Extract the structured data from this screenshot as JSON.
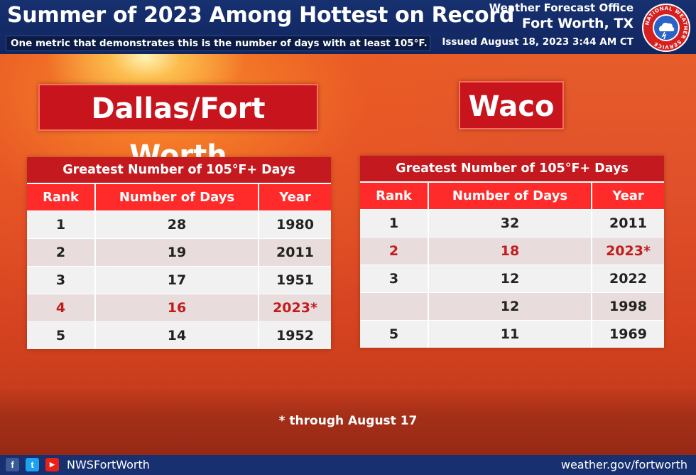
{
  "header": {
    "title": "Summer of 2023 Among Hottest on Record",
    "subtitle": "One metric that demonstrates this is the number of days with at least 105°F.",
    "office_line1": "Weather Forecast Office",
    "office_line2": "Fort Worth, TX",
    "issued": "Issued August 18, 2023 3:44 AM CT",
    "logo_text": "NATIONAL WEATHER SERVICE"
  },
  "dfw": {
    "city": "Dallas/Fort Worth",
    "table_title": "Greatest Number of 105°F+ Days",
    "columns": [
      "Rank",
      "Number of Days",
      "Year"
    ],
    "rows": [
      {
        "rank": "1",
        "days": "28",
        "year": "1980"
      },
      {
        "rank": "2",
        "days": "19",
        "year": "2011"
      },
      {
        "rank": "3",
        "days": "17",
        "year": "1951"
      },
      {
        "rank": "4",
        "days": "16",
        "year": "2023*"
      },
      {
        "rank": "5",
        "days": "14",
        "year": "1952"
      }
    ]
  },
  "waco": {
    "city": "Waco",
    "table_title": "Greatest Number of 105°F+ Days",
    "columns": [
      "Rank",
      "Number of Days",
      "Year"
    ],
    "rows": [
      {
        "rank": "1",
        "days": "32",
        "year": "2011"
      },
      {
        "rank": "2",
        "days": "18",
        "year": "2023*"
      },
      {
        "rank": "3",
        "days": "12",
        "year": "2022"
      },
      {
        "rank": "",
        "days": "12",
        "year": "1998"
      },
      {
        "rank": "5",
        "days": "11",
        "year": "1969"
      }
    ]
  },
  "footnote": "* through August 17",
  "footer": {
    "social_icons": [
      "facebook-icon",
      "twitter-icon",
      "youtube-icon"
    ],
    "handle": "NWSFortWorth",
    "website": "weather.gov/fortworth"
  },
  "colors": {
    "header_blue": "#17306f",
    "title_red": "#c8151d",
    "column_red": "#ff2b2b",
    "highlight_red": "#c01c1c"
  }
}
